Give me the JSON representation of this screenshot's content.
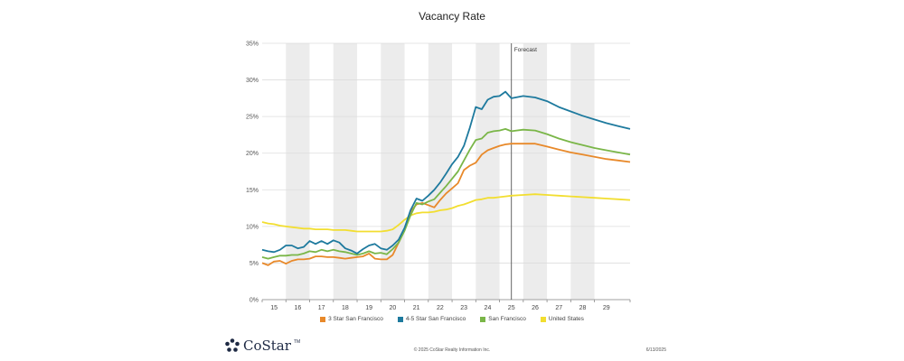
{
  "chart_data": {
    "type": "line",
    "title": "Vacancy Rate",
    "xlabel": "",
    "ylabel": "",
    "ylim": [
      0,
      35
    ],
    "yticks": [
      "0%",
      "5%",
      "10%",
      "15%",
      "20%",
      "25%",
      "30%",
      "35%"
    ],
    "ytick_values": [
      0,
      5,
      10,
      15,
      20,
      25,
      30,
      35
    ],
    "xlim": [
      2014.5,
      2030.0
    ],
    "categories": [
      "15",
      "16",
      "17",
      "18",
      "19",
      "20",
      "21",
      "22",
      "23",
      "24",
      "25",
      "26",
      "27",
      "28",
      "29"
    ],
    "category_years": [
      2015,
      2016,
      2017,
      2018,
      2019,
      2020,
      2021,
      2022,
      2023,
      2024,
      2025,
      2026,
      2027,
      2028,
      2029
    ],
    "forecast_label": "Forecast",
    "forecast_start": 2025.0,
    "x": [
      2014.5,
      2014.75,
      2015.0,
      2015.25,
      2015.5,
      2015.75,
      2016.0,
      2016.25,
      2016.5,
      2016.75,
      2017.0,
      2017.25,
      2017.5,
      2017.75,
      2018.0,
      2018.25,
      2018.5,
      2018.75,
      2019.0,
      2019.25,
      2019.5,
      2019.75,
      2020.0,
      2020.25,
      2020.5,
      2020.75,
      2021.0,
      2021.25,
      2021.5,
      2021.75,
      2022.0,
      2022.25,
      2022.5,
      2022.75,
      2023.0,
      2023.25,
      2023.5,
      2023.75,
      2024.0,
      2024.25,
      2024.5,
      2024.75,
      2025.0,
      2025.5,
      2026.0,
      2026.5,
      2027.0,
      2027.5,
      2028.0,
      2028.5,
      2029.0,
      2029.5,
      2030.0
    ],
    "series": [
      {
        "name": "3 Star San Francisco",
        "color": "#e8892a",
        "values": [
          5.0,
          4.7,
          5.2,
          5.3,
          4.9,
          5.3,
          5.5,
          5.5,
          5.6,
          5.9,
          5.9,
          5.8,
          5.8,
          5.7,
          5.6,
          5.7,
          5.8,
          5.9,
          6.3,
          5.6,
          5.5,
          5.5,
          6.1,
          7.8,
          9.5,
          12.0,
          13.0,
          13.2,
          12.9,
          12.6,
          13.6,
          14.5,
          15.2,
          15.9,
          17.7,
          18.3,
          18.7,
          19.8,
          20.4,
          20.7,
          21.0,
          21.2,
          21.3,
          21.3,
          21.3,
          20.9,
          20.5,
          20.1,
          19.8,
          19.5,
          19.2,
          19.0,
          18.8
        ]
      },
      {
        "name": "4-5 Star San Francisco",
        "color": "#1e7a9e",
        "values": [
          6.8,
          6.6,
          6.5,
          6.8,
          7.4,
          7.4,
          7.0,
          7.2,
          8.0,
          7.6,
          8.0,
          7.6,
          8.1,
          7.8,
          7.0,
          6.7,
          6.3,
          6.9,
          7.4,
          7.6,
          7.0,
          6.8,
          7.4,
          8.2,
          9.8,
          12.2,
          13.8,
          13.5,
          14.2,
          15.0,
          16.0,
          17.2,
          18.5,
          19.5,
          21.0,
          23.5,
          26.3,
          26.0,
          27.3,
          27.7,
          27.8,
          28.4,
          27.5,
          27.8,
          27.6,
          27.1,
          26.3,
          25.7,
          25.1,
          24.6,
          24.1,
          23.7,
          23.3
        ]
      },
      {
        "name": "San Francisco",
        "color": "#7ab648",
        "values": [
          5.8,
          5.6,
          5.8,
          6.0,
          6.0,
          6.1,
          6.1,
          6.3,
          6.6,
          6.5,
          6.8,
          6.6,
          6.8,
          6.6,
          6.5,
          6.3,
          6.1,
          6.3,
          6.6,
          6.3,
          6.4,
          6.2,
          6.9,
          7.8,
          9.4,
          11.5,
          13.2,
          13.0,
          13.4,
          13.7,
          14.6,
          15.5,
          16.5,
          17.5,
          19.0,
          20.5,
          21.8,
          22.0,
          22.8,
          23.0,
          23.1,
          23.3,
          23.0,
          23.2,
          23.1,
          22.6,
          22.0,
          21.5,
          21.1,
          20.7,
          20.4,
          20.1,
          19.8
        ]
      },
      {
        "name": "United States",
        "color": "#f2de30",
        "values": [
          10.6,
          10.4,
          10.3,
          10.1,
          10.0,
          9.9,
          9.8,
          9.7,
          9.7,
          9.6,
          9.6,
          9.6,
          9.5,
          9.5,
          9.5,
          9.4,
          9.3,
          9.3,
          9.3,
          9.3,
          9.3,
          9.4,
          9.6,
          10.2,
          10.9,
          11.5,
          11.8,
          11.9,
          11.9,
          12.0,
          12.2,
          12.3,
          12.5,
          12.8,
          13.0,
          13.3,
          13.6,
          13.7,
          13.9,
          13.9,
          14.0,
          14.1,
          14.2,
          14.3,
          14.4,
          14.3,
          14.2,
          14.1,
          14.0,
          13.9,
          13.8,
          13.7,
          13.6
        ]
      }
    ]
  },
  "footer": {
    "logo_text": "CoStar",
    "logo_tm": "TM",
    "copyright": "© 2025 CoStar Realty Information Inc.",
    "date": "6/13/2025"
  }
}
